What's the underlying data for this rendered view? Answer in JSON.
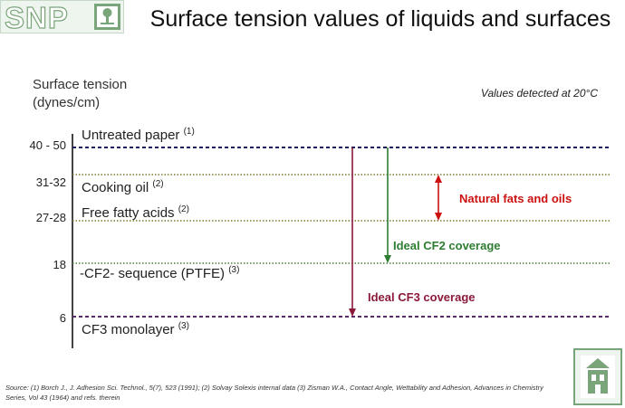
{
  "logo": {
    "text": "SNP"
  },
  "title": "Surface tension values of liquids and surfaces",
  "y_axis_label": [
    "Surface tension",
    "(dynes/cm)"
  ],
  "note": "Values detected at 20°C",
  "levels": [
    {
      "tick": "40 - 50",
      "label": "Untreated paper",
      "ref": "(1)",
      "color": "#1a1a5e",
      "style": "dashed"
    },
    {
      "tick": "31-32",
      "label": "Cooking oil",
      "ref": "(2)",
      "color": "#7a7a2a",
      "style": "dotted"
    },
    {
      "tick": "27-28",
      "label": "Free fatty acids",
      "ref": "(2)",
      "color": "#7a7a2a",
      "style": "dotted"
    },
    {
      "tick": "18",
      "label": "-CF2- sequence (PTFE)",
      "ref": "(3)",
      "color": "#4f7a3a",
      "style": "dotted"
    },
    {
      "tick": "6",
      "label": "CF3 monolayer",
      "ref": "(3)",
      "color": "#5a2a6a",
      "style": "dashed"
    }
  ],
  "annotations": {
    "natural_fats": {
      "text": "Natural fats and oils",
      "color": "#cc1111"
    },
    "ideal_cf2": {
      "text": "Ideal CF2 coverage",
      "color": "#2e7d32"
    },
    "ideal_cf3": {
      "text": "Ideal CF3 coverage",
      "color": "#8b1a3a"
    }
  },
  "source": "Source: (1) Borch J., J. Adhesion Sci. Technol., 5(7), 523 (1991); (2) Solvay Solexis internal data (3) Zisman W.A., Contact Angle, Wettability and Adhesion, Advances in Chemistry Series, Vol 43 (1964) and refs. therein"
}
